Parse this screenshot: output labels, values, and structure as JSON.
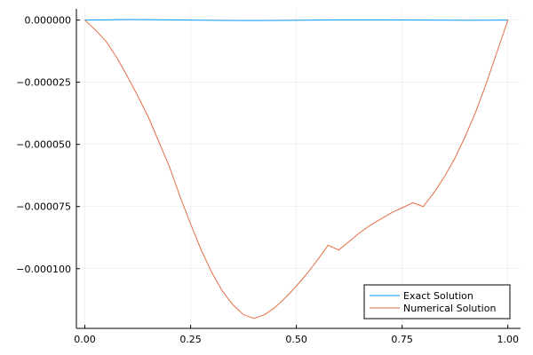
{
  "chart_data": {
    "type": "line",
    "title": "",
    "xlabel": "",
    "ylabel": "",
    "xlim": [
      -0.02,
      1.03
    ],
    "ylim": [
      -0.000124,
      4.5e-06
    ],
    "grid": true,
    "legend_position": "bottom-right",
    "x_ticks": [
      {
        "value": 0.0,
        "label": "0.00"
      },
      {
        "value": 0.25,
        "label": "0.25"
      },
      {
        "value": 0.5,
        "label": "0.50"
      },
      {
        "value": 0.75,
        "label": "0.75"
      },
      {
        "value": 1.0,
        "label": "1.00"
      }
    ],
    "y_ticks": [
      {
        "value": 0.0,
        "label": "0.000000"
      },
      {
        "value": -2.5e-05,
        "label": "−0.000025"
      },
      {
        "value": -5e-05,
        "label": "−0.000050"
      },
      {
        "value": -7.5e-05,
        "label": "−0.000075"
      },
      {
        "value": -0.0001,
        "label": "−0.000100"
      }
    ],
    "series": [
      {
        "name": "Exact Solution",
        "color": "#009af9",
        "x": [
          0.0,
          0.1,
          0.2,
          0.3,
          0.4,
          0.5,
          0.6,
          0.7,
          0.8,
          0.9,
          1.0
        ],
        "y": [
          0.0,
          2e-07,
          1e-07,
          -1e-07,
          -2e-07,
          -1e-07,
          1e-07,
          1e-07,
          0.0,
          -1e-07,
          0.0
        ]
      },
      {
        "name": "Numerical Solution",
        "color": "#e26f46",
        "x": [
          0.0,
          0.025,
          0.05,
          0.075,
          0.1,
          0.125,
          0.15,
          0.175,
          0.2,
          0.225,
          0.25,
          0.275,
          0.3,
          0.325,
          0.35,
          0.375,
          0.4,
          0.425,
          0.45,
          0.475,
          0.5,
          0.525,
          0.55,
          0.575,
          0.6,
          0.625,
          0.65,
          0.675,
          0.7,
          0.725,
          0.75,
          0.775,
          0.8,
          0.825,
          0.85,
          0.875,
          0.9,
          0.925,
          0.95,
          0.975,
          1.0
        ],
        "y": [
          0.0,
          -4e-06,
          -8.5e-06,
          -1.5e-05,
          -2.25e-05,
          -3.05e-05,
          -3.9e-05,
          -4.9e-05,
          -5.9e-05,
          -7.1e-05,
          -8.2e-05,
          -9.25e-05,
          -0.0001015,
          -0.000109,
          -0.0001145,
          -0.0001185,
          -0.00012,
          -0.0001185,
          -0.0001155,
          -0.0001115,
          -0.000107,
          -0.000102,
          -9.65e-05,
          -9.05e-05,
          -9.25e-05,
          -8.9e-05,
          -8.55e-05,
          -8.25e-05,
          -8e-05,
          -7.75e-05,
          -7.55e-05,
          -7.35e-05,
          -7.5e-05,
          -6.95e-05,
          -6.3e-05,
          -5.55e-05,
          -4.65e-05,
          -3.65e-05,
          -2.5e-05,
          -1.25e-05,
          0.0
        ]
      }
    ]
  }
}
